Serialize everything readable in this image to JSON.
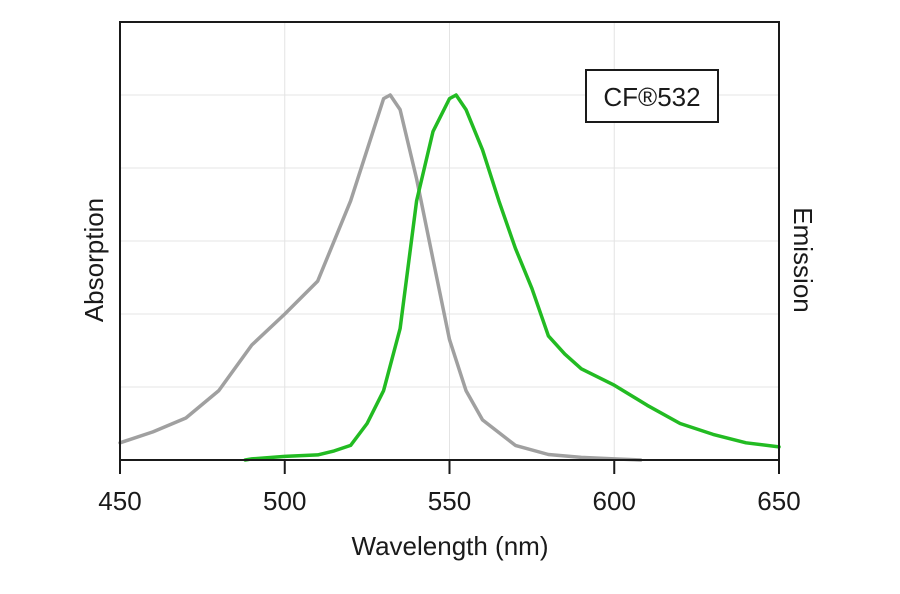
{
  "chart_data": {
    "type": "line",
    "title": "",
    "xlabel": "Wavelength (nm)",
    "ylabel_left": "Absorption",
    "ylabel_right": "Emission",
    "xlim": [
      450,
      650
    ],
    "ylim": [
      0,
      1.2
    ],
    "xticks": [
      450,
      500,
      550,
      600,
      650
    ],
    "grid": true,
    "legend": {
      "label": "CF®532",
      "placement": "top-right"
    },
    "series": [
      {
        "key": "absorption",
        "color": "#a0a0a0",
        "x": [
          450,
          460,
          470,
          480,
          490,
          500,
          510,
          520,
          525,
          530,
          532,
          535,
          540,
          545,
          550,
          555,
          560,
          570,
          580,
          590,
          600,
          608
        ],
        "y": [
          0.047,
          0.077,
          0.115,
          0.19,
          0.315,
          0.4,
          0.49,
          0.71,
          0.85,
          0.99,
          1.0,
          0.96,
          0.77,
          0.55,
          0.33,
          0.19,
          0.11,
          0.04,
          0.015,
          0.007,
          0.003,
          0.0
        ]
      },
      {
        "key": "emission",
        "color": "#22bb22",
        "x": [
          488,
          490,
          500,
          510,
          515,
          520,
          525,
          530,
          535,
          540,
          545,
          550,
          552,
          555,
          560,
          565,
          570,
          575,
          580,
          585,
          590,
          600,
          610,
          620,
          630,
          640,
          650
        ],
        "y": [
          0.0,
          0.003,
          0.01,
          0.014,
          0.025,
          0.04,
          0.1,
          0.19,
          0.36,
          0.71,
          0.9,
          0.99,
          1.0,
          0.96,
          0.85,
          0.71,
          0.58,
          0.47,
          0.34,
          0.29,
          0.25,
          0.205,
          0.15,
          0.1,
          0.07,
          0.047,
          0.036
        ]
      }
    ]
  }
}
